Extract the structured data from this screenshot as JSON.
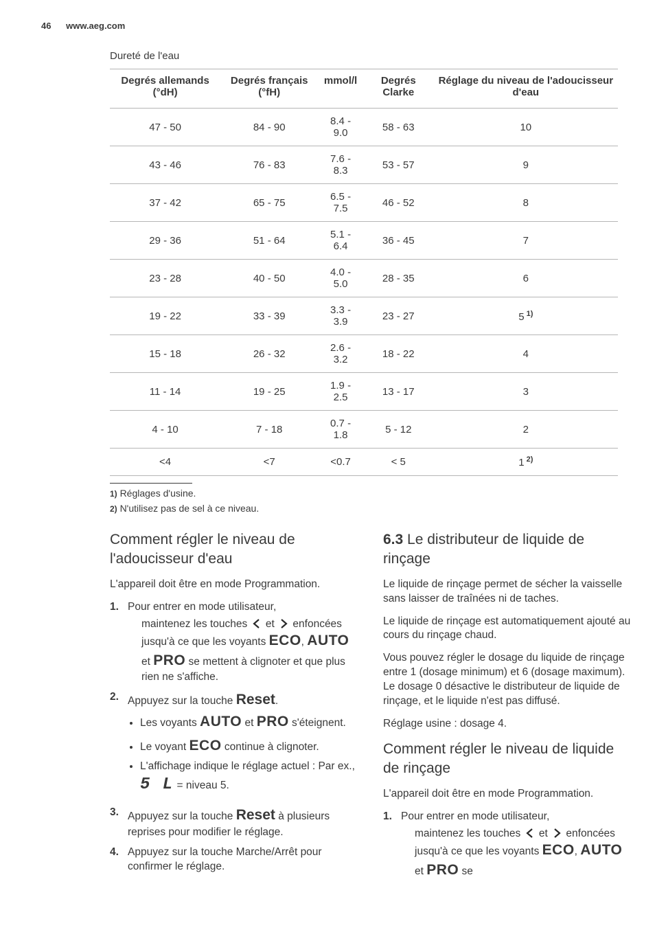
{
  "header": {
    "page": "46",
    "url": "www.aeg.com"
  },
  "table": {
    "caption": "Dureté de l'eau",
    "columns": [
      "Degrés allemands (°dH)",
      "Degrés français (°fH)",
      "mmol/l",
      "Degrés Clarke",
      "Réglage du niveau de l'adoucisseur d'eau"
    ],
    "rows": [
      [
        "47 - 50",
        "84 - 90",
        "8.4 - 9.0",
        "58 - 63",
        "10"
      ],
      [
        "43 - 46",
        "76 - 83",
        "7.6 - 8.3",
        "53 - 57",
        "9"
      ],
      [
        "37 - 42",
        "65 - 75",
        "6.5 - 7.5",
        "46 - 52",
        "8"
      ],
      [
        "29 - 36",
        "51 - 64",
        "5.1 - 6.4",
        "36 - 45",
        "7"
      ],
      [
        "23 - 28",
        "40 - 50",
        "4.0 - 5.0",
        "28 - 35",
        "6"
      ],
      [
        "19 - 22",
        "33 - 39",
        "3.3 - 3.9",
        "23 - 27",
        "5"
      ],
      [
        "15 - 18",
        "26 - 32",
        "2.6 - 3.2",
        "18 - 22",
        "4"
      ],
      [
        "11 - 14",
        "19 - 25",
        "1.9 - 2.5",
        "13 - 17",
        "3"
      ],
      [
        "4 - 10",
        "7 - 18",
        "0.7 - 1.8",
        "5 - 12",
        "2"
      ],
      [
        "<4",
        "<7",
        "<0.7",
        "< 5",
        "1"
      ]
    ],
    "fn_row5_sup": "1)",
    "fn_row9_sup": "2)",
    "footnotes": [
      {
        "num": "1)",
        "text": "Réglages d'usine."
      },
      {
        "num": "2)",
        "text": "N'utilisez pas de sel à ce niveau."
      }
    ]
  },
  "left": {
    "h_softener": "Comment régler le niveau de l'adoucisseur d'eau",
    "intro": "L'appareil doit être en mode Programmation.",
    "step1a": "Pour entrer en mode utilisateur,",
    "step1b_pre": "maintenez les touches ",
    "step1b_mid": " et ",
    "step1b_post": " enfoncées jusqu'à ce que les voyants ",
    "kw_eco": "ECO",
    "kw_auto": "AUTO",
    "kw_pro": "PRO",
    "step1c_mid1": ", ",
    "step1c_mid2": " et ",
    "step1c_post": " se mettent à clignoter et que plus rien ne s'affiche.",
    "step2_pre": "Appuyez sur la touche ",
    "kw_reset": "Reset",
    "step2_post": ".",
    "b1_pre": "Les voyants ",
    "b1_mid": " et ",
    "b1_post": " s'éteignent.",
    "b2_pre": "Le voyant ",
    "b2_post": " continue à clignoter.",
    "b3_pre": "L'affichage indique le réglage actuel : Par ex., ",
    "seg": "5 L",
    "b3_post": " = niveau 5.",
    "step3_pre": "Appuyez sur la touche ",
    "step3_post": " à plusieurs reprises pour modifier le réglage.",
    "step4": "Appuyez sur la touche Marche/Arrêt pour confirmer le réglage."
  },
  "right": {
    "secnum": "6.3",
    "h_rinse": "Le distributeur de liquide de rinçage",
    "p1": "Le liquide de rinçage permet de sécher la vaisselle sans laisser de traînées ni de taches.",
    "p2": "Le liquide de rinçage est automatiquement ajouté au cours du rinçage chaud.",
    "p3": "Vous pouvez régler le dosage du liquide de rinçage entre 1 (dosage minimum) et 6 (dosage maximum). Le dosage 0 désactive le distributeur de liquide de rinçage, et le liquide n'est pas diffusé.",
    "p4": "Réglage usine : dosage 4.",
    "h_rinse_level": "Comment régler le niveau de liquide de rinçage",
    "intro2": "L'appareil doit être en mode Programmation.",
    "step1a": "Pour entrer en mode utilisateur,",
    "step1b_pre": "maintenez les touches ",
    "step1b_mid": " et ",
    "step1b_post": " enfoncées jusqu'à ce que les voyants ",
    "step1c_mid1": ", ",
    "step1c_mid2": " et ",
    "step1c_post": " se"
  }
}
